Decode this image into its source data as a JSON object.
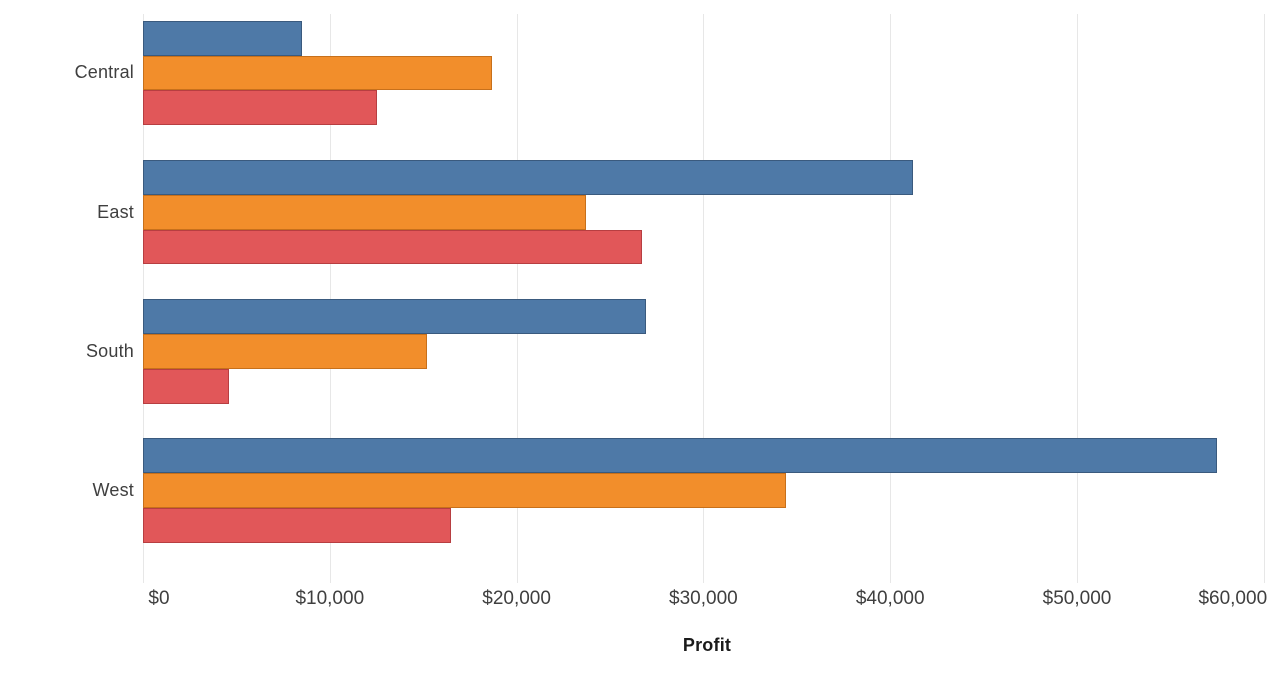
{
  "colors": {
    "background": "#ffffff",
    "grid": "#e7e7e7",
    "text": "#3f3f3f",
    "axis_title": "#1b1b1b"
  },
  "chart_data": {
    "type": "bar",
    "orientation": "horizontal",
    "title": "",
    "xlabel": "Profit",
    "ylabel": "",
    "categories": [
      "Central",
      "East",
      "South",
      "West"
    ],
    "series": [
      {
        "name": "blue-series",
        "color": "#4e79a7",
        "border_color": "#3a5a7e",
        "values": [
          8500,
          41200,
          26900,
          57500
        ]
      },
      {
        "name": "orange-series",
        "color": "#f28e2b",
        "border_color": "#c7701b",
        "values": [
          18700,
          23700,
          15200,
          34400
        ]
      },
      {
        "name": "red-series",
        "color": "#e15759",
        "border_color": "#b73e41",
        "values": [
          12500,
          26700,
          4600,
          16500
        ]
      }
    ],
    "x_ticks": [
      "$0",
      "$10,000",
      "$20,000",
      "$30,000",
      "$40,000",
      "$50,000",
      "$60,000"
    ],
    "x_tick_values": [
      0,
      10000,
      20000,
      30000,
      40000,
      50000,
      60000
    ],
    "xlim": [
      0,
      60900
    ],
    "grid": "vertical",
    "legend": "none"
  }
}
